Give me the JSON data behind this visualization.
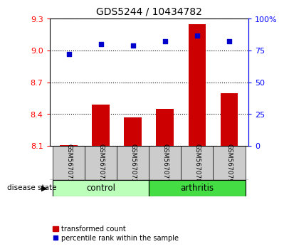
{
  "title": "GDS5244 / 10434782",
  "samples": [
    "GSM567071",
    "GSM567072",
    "GSM567073",
    "GSM567077",
    "GSM567078",
    "GSM567079"
  ],
  "transformed_count": [
    8.11,
    8.49,
    8.37,
    8.45,
    9.25,
    8.6
  ],
  "percentile_rank": [
    72,
    80,
    79,
    82,
    87,
    82
  ],
  "left_ylim": [
    8.1,
    9.3
  ],
  "right_ylim": [
    0,
    100
  ],
  "left_yticks": [
    8.1,
    8.4,
    8.7,
    9.0,
    9.3
  ],
  "right_yticks": [
    0,
    25,
    50,
    75,
    100
  ],
  "right_yticklabels": [
    "0",
    "25",
    "50",
    "75",
    "100%"
  ],
  "bar_color": "#cc0000",
  "scatter_color": "#0000cc",
  "bar_width": 0.55,
  "control_color": "#bbffbb",
  "arthritis_color": "#44dd44",
  "sample_box_color": "#cccccc",
  "legend_bar_label": "transformed count",
  "legend_scatter_label": "percentile rank within the sample",
  "disease_state_label": "disease state"
}
